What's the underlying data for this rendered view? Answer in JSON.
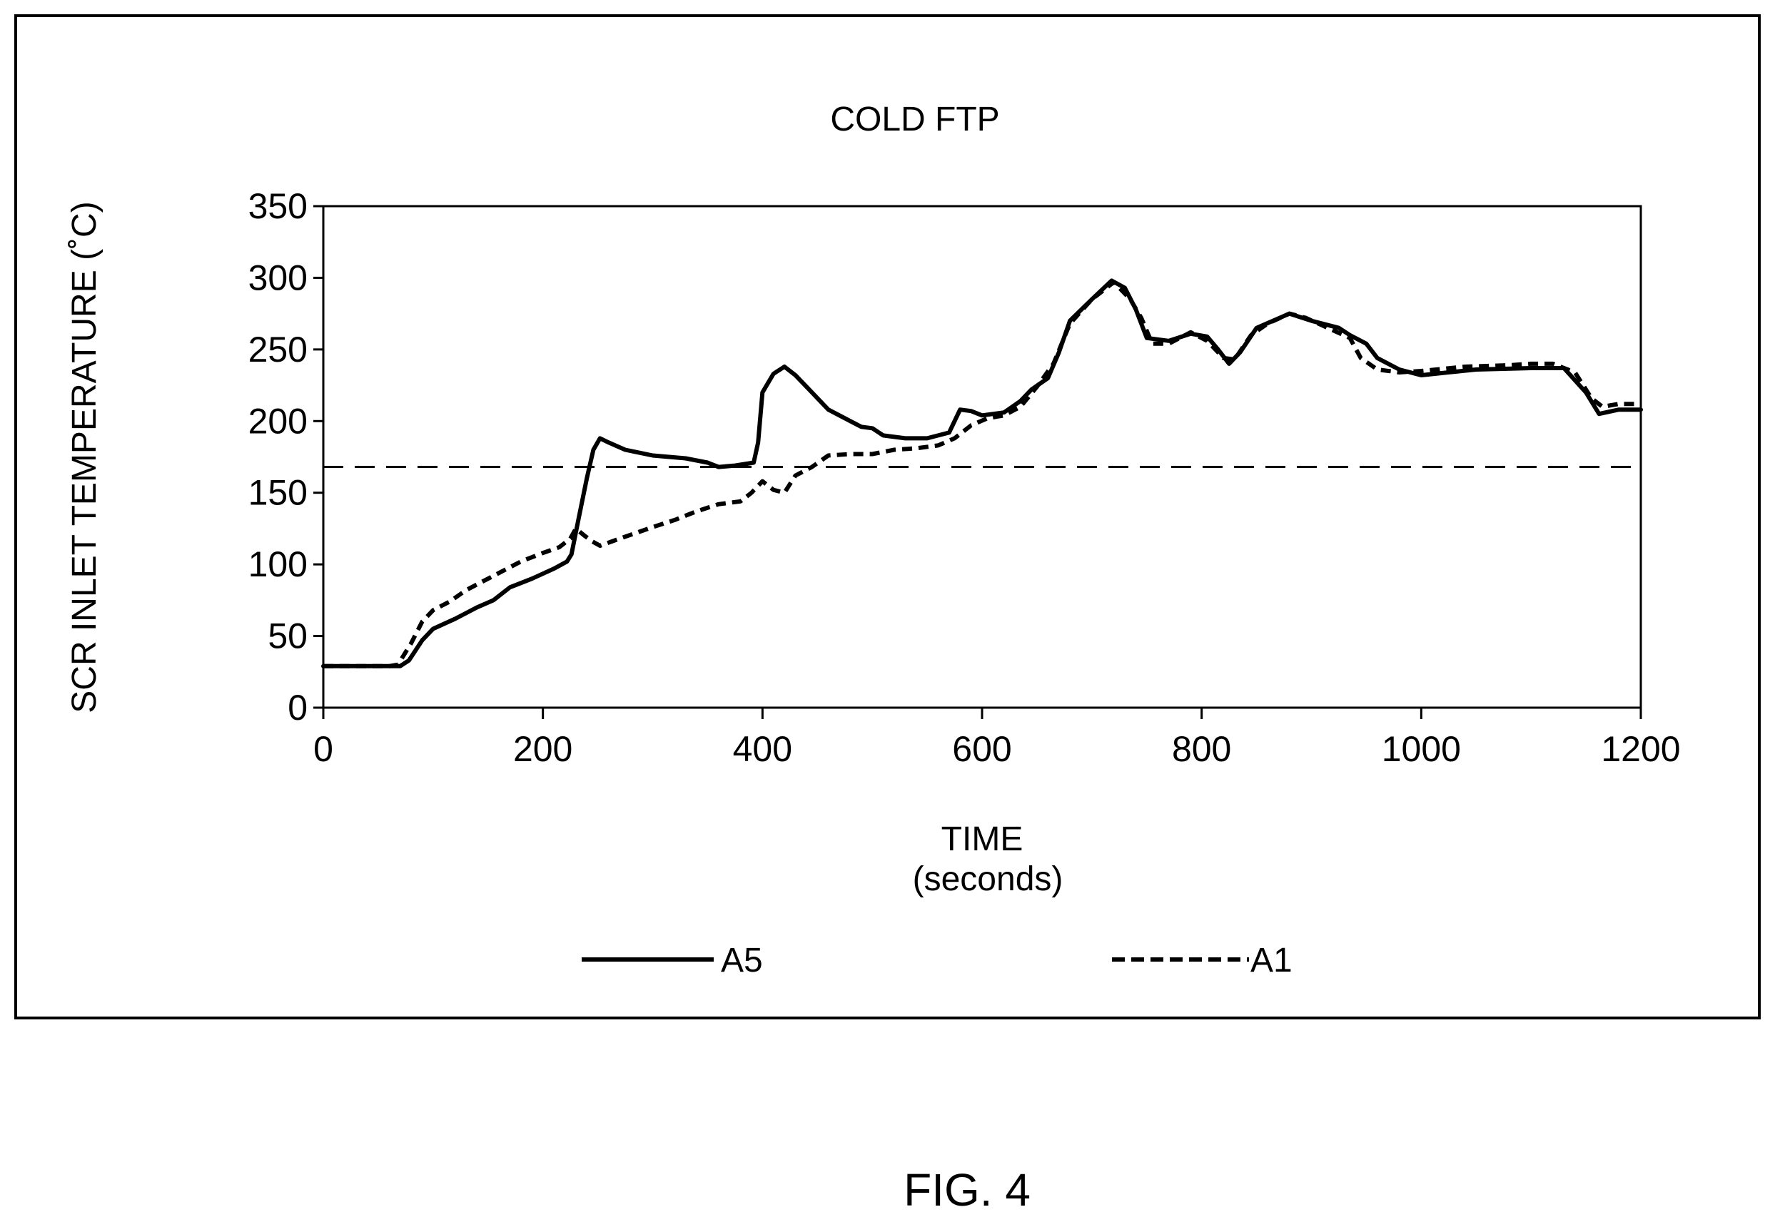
{
  "figure_caption": "FIG. 4",
  "chart_data": {
    "type": "line",
    "title": "COLD FTP",
    "xlabel": "TIME",
    "xlabel_unit": "(seconds)",
    "ylabel": "SCR INLET TEMPERATURE (˚C)",
    "xlim": [
      0,
      1200
    ],
    "ylim": [
      0,
      350
    ],
    "x_ticks": [
      0,
      200,
      400,
      600,
      800,
      1000,
      1200
    ],
    "y_ticks": [
      0,
      50,
      100,
      150,
      200,
      250,
      300,
      350
    ],
    "grid": false,
    "legend_position": "bottom",
    "reference_line": {
      "y": 168,
      "style": "dashed"
    },
    "series": [
      {
        "name": "A5",
        "style": "solid",
        "color": "#000000",
        "points": [
          [
            0,
            29
          ],
          [
            30,
            29
          ],
          [
            60,
            29
          ],
          [
            70,
            29
          ],
          [
            78,
            33
          ],
          [
            90,
            47
          ],
          [
            100,
            55
          ],
          [
            120,
            62
          ],
          [
            140,
            70
          ],
          [
            155,
            75
          ],
          [
            170,
            84
          ],
          [
            190,
            90
          ],
          [
            210,
            97
          ],
          [
            222,
            102
          ],
          [
            226,
            107
          ],
          [
            232,
            130
          ],
          [
            240,
            160
          ],
          [
            246,
            180
          ],
          [
            252,
            188
          ],
          [
            260,
            185
          ],
          [
            275,
            180
          ],
          [
            300,
            176
          ],
          [
            330,
            174
          ],
          [
            350,
            171
          ],
          [
            360,
            168
          ],
          [
            375,
            169
          ],
          [
            392,
            171
          ],
          [
            396,
            185
          ],
          [
            400,
            220
          ],
          [
            410,
            233
          ],
          [
            420,
            238
          ],
          [
            430,
            232
          ],
          [
            445,
            220
          ],
          [
            460,
            208
          ],
          [
            480,
            200
          ],
          [
            490,
            196
          ],
          [
            500,
            195
          ],
          [
            510,
            190
          ],
          [
            530,
            188
          ],
          [
            550,
            188
          ],
          [
            570,
            192
          ],
          [
            575,
            200
          ],
          [
            580,
            208
          ],
          [
            590,
            207
          ],
          [
            600,
            204
          ],
          [
            620,
            206
          ],
          [
            635,
            214
          ],
          [
            645,
            222
          ],
          [
            660,
            230
          ],
          [
            670,
            248
          ],
          [
            680,
            270
          ],
          [
            700,
            285
          ],
          [
            718,
            298
          ],
          [
            730,
            293
          ],
          [
            740,
            278
          ],
          [
            750,
            258
          ],
          [
            770,
            256
          ],
          [
            790,
            261
          ],
          [
            805,
            259
          ],
          [
            815,
            250
          ],
          [
            825,
            240
          ],
          [
            835,
            248
          ],
          [
            850,
            265
          ],
          [
            880,
            275
          ],
          [
            900,
            270
          ],
          [
            925,
            265
          ],
          [
            935,
            260
          ],
          [
            950,
            254
          ],
          [
            960,
            244
          ],
          [
            980,
            236
          ],
          [
            1000,
            232
          ],
          [
            1050,
            236
          ],
          [
            1100,
            237
          ],
          [
            1130,
            237
          ],
          [
            1150,
            220
          ],
          [
            1162,
            205
          ],
          [
            1180,
            208
          ],
          [
            1200,
            208
          ]
        ]
      },
      {
        "name": "A1",
        "style": "dashed",
        "color": "#000000",
        "points": [
          [
            0,
            29
          ],
          [
            30,
            29
          ],
          [
            60,
            29
          ],
          [
            68,
            30
          ],
          [
            80,
            45
          ],
          [
            90,
            60
          ],
          [
            100,
            68
          ],
          [
            115,
            74
          ],
          [
            130,
            82
          ],
          [
            145,
            88
          ],
          [
            160,
            94
          ],
          [
            180,
            102
          ],
          [
            200,
            108
          ],
          [
            215,
            112
          ],
          [
            225,
            118
          ],
          [
            230,
            125
          ],
          [
            238,
            120
          ],
          [
            245,
            116
          ],
          [
            252,
            113
          ],
          [
            270,
            118
          ],
          [
            300,
            126
          ],
          [
            320,
            131
          ],
          [
            340,
            137
          ],
          [
            360,
            142
          ],
          [
            380,
            144
          ],
          [
            390,
            150
          ],
          [
            400,
            158
          ],
          [
            410,
            152
          ],
          [
            420,
            150
          ],
          [
            430,
            162
          ],
          [
            445,
            168
          ],
          [
            460,
            176
          ],
          [
            480,
            177
          ],
          [
            500,
            177
          ],
          [
            520,
            180
          ],
          [
            540,
            181
          ],
          [
            560,
            183
          ],
          [
            575,
            188
          ],
          [
            590,
            197
          ],
          [
            605,
            202
          ],
          [
            620,
            204
          ],
          [
            635,
            210
          ],
          [
            650,
            224
          ],
          [
            665,
            240
          ],
          [
            680,
            268
          ],
          [
            700,
            285
          ],
          [
            720,
            297
          ],
          [
            735,
            285
          ],
          [
            745,
            272
          ],
          [
            755,
            254
          ],
          [
            770,
            254
          ],
          [
            790,
            262
          ],
          [
            805,
            256
          ],
          [
            820,
            244
          ],
          [
            830,
            243
          ],
          [
            845,
            260
          ],
          [
            860,
            268
          ],
          [
            880,
            275
          ],
          [
            895,
            272
          ],
          [
            915,
            265
          ],
          [
            935,
            258
          ],
          [
            945,
            244
          ],
          [
            960,
            236
          ],
          [
            980,
            234
          ],
          [
            1000,
            235
          ],
          [
            1040,
            238
          ],
          [
            1080,
            239
          ],
          [
            1100,
            240
          ],
          [
            1120,
            240
          ],
          [
            1140,
            234
          ],
          [
            1155,
            216
          ],
          [
            1165,
            210
          ],
          [
            1180,
            212
          ],
          [
            1200,
            212
          ]
        ]
      }
    ]
  }
}
